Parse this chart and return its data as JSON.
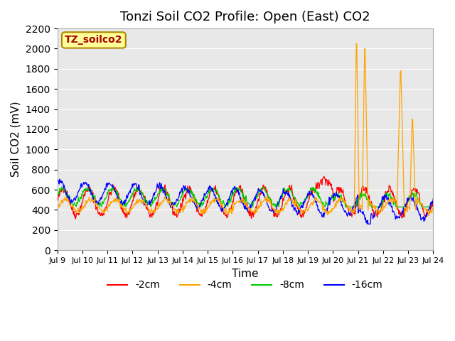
{
  "title": "Tonzi Soil CO2 Profile: Open (East) CO2",
  "ylabel": "Soil CO2 (mV)",
  "xlabel": "Time",
  "ylim": [
    0,
    2200
  ],
  "yticks": [
    0,
    200,
    400,
    600,
    800,
    1000,
    1200,
    1400,
    1600,
    1800,
    2000,
    2200
  ],
  "x_tick_days": [
    9,
    10,
    11,
    12,
    13,
    14,
    15,
    16,
    17,
    18,
    19,
    20,
    21,
    22,
    23,
    24
  ],
  "colors": {
    "2cm": "#FF0000",
    "4cm": "#FFA500",
    "8cm": "#00CC00",
    "16cm": "#0000FF"
  },
  "legend_labels": [
    "-2cm",
    "-4cm",
    "-8cm",
    "-16cm"
  ],
  "legend_colors": [
    "#FF0000",
    "#FFA500",
    "#00CC00",
    "#0000FF"
  ],
  "bg_color": "#E8E8E8",
  "annotation_text": "TZ_soilco2",
  "annotation_bg": "#FFFF99",
  "annotation_border": "#AA8800",
  "title_fontsize": 13,
  "label_fontsize": 11
}
